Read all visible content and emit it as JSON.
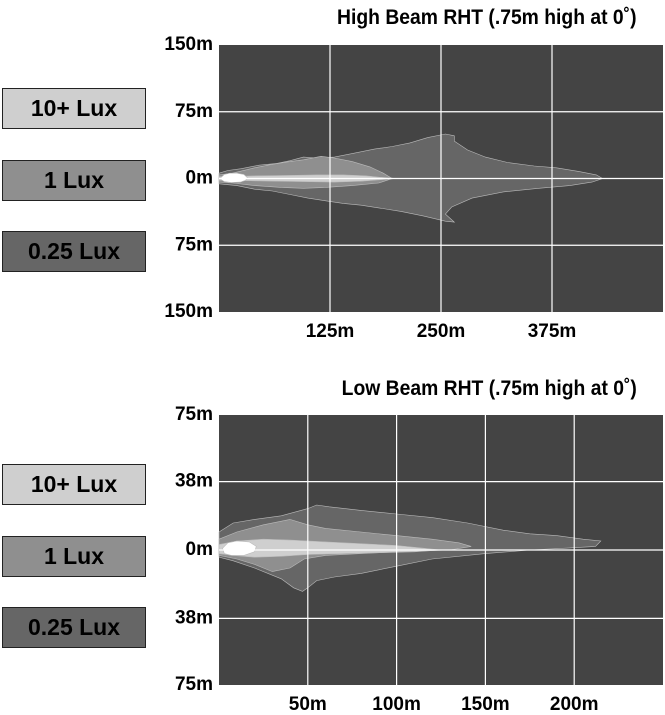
{
  "colors": {
    "plot_background": "#444444",
    "lux_025": "#666666",
    "lux_1": "#8f8f8f",
    "lux_10": "#cfcfcf",
    "grid": "#ffffff",
    "text": "#000000"
  },
  "chart_data": [
    {
      "type": "area",
      "title": "High Beam RHT (.75m high at 0˚)",
      "xlabel": "",
      "ylabel": "",
      "x_tick_labels": [
        "125m",
        "250m",
        "375m"
      ],
      "x_ticks": [
        125,
        250,
        375
      ],
      "xlim": [
        0,
        500
      ],
      "y_tick_labels": [
        "150m",
        "75m",
        "0m",
        "75m",
        "150m"
      ],
      "y_ticks": [
        150,
        75,
        0,
        -75,
        -150
      ],
      "ylim": [
        -150,
        150
      ],
      "grid": true,
      "legend": {
        "placement": "left",
        "entries": [
          "10+ Lux",
          "1 Lux",
          "0.25 Lux"
        ]
      },
      "series": [
        {
          "name": "0.25 Lux",
          "color": "#666666",
          "points": [
            [
              0,
              6
            ],
            [
              10,
              9
            ],
            [
              25,
              11
            ],
            [
              45,
              15
            ],
            [
              65,
              17
            ],
            [
              80,
              20
            ],
            [
              95,
              24
            ],
            [
              110,
              23
            ],
            [
              130,
              24
            ],
            [
              150,
              28
            ],
            [
              175,
              33
            ],
            [
              195,
              36
            ],
            [
              215,
              40
            ],
            [
              235,
              46
            ],
            [
              255,
              50
            ],
            [
              265,
              48
            ],
            [
              265,
              42
            ],
            [
              280,
              32
            ],
            [
              300,
              24
            ],
            [
              325,
              18
            ],
            [
              355,
              14
            ],
            [
              380,
              12
            ],
            [
              405,
              8
            ],
            [
              425,
              4
            ],
            [
              432,
              0
            ],
            [
              420,
              -4
            ],
            [
              395,
              -8
            ],
            [
              360,
              -11
            ],
            [
              320,
              -15
            ],
            [
              285,
              -22
            ],
            [
              262,
              -32
            ],
            [
              255,
              -40
            ],
            [
              265,
              -49
            ],
            [
              255,
              -48
            ],
            [
              230,
              -42
            ],
            [
              205,
              -37
            ],
            [
              180,
              -33
            ],
            [
              160,
              -30
            ],
            [
              140,
              -28
            ],
            [
              120,
              -25
            ],
            [
              100,
              -22
            ],
            [
              80,
              -18
            ],
            [
              60,
              -14
            ],
            [
              40,
              -12
            ],
            [
              20,
              -8
            ],
            [
              0,
              -6
            ]
          ]
        },
        {
          "name": "1 Lux",
          "color": "#8f8f8f",
          "points": [
            [
              0,
              4
            ],
            [
              15,
              6
            ],
            [
              40,
              12
            ],
            [
              60,
              16
            ],
            [
              80,
              19
            ],
            [
              95,
              21
            ],
            [
              115,
              25
            ],
            [
              130,
              23
            ],
            [
              150,
              19
            ],
            [
              170,
              13
            ],
            [
              185,
              6
            ],
            [
              195,
              0
            ],
            [
              180,
              -5
            ],
            [
              150,
              -8
            ],
            [
              120,
              -10
            ],
            [
              95,
              -11
            ],
            [
              70,
              -10
            ],
            [
              40,
              -8
            ],
            [
              15,
              -5
            ],
            [
              0,
              -4
            ]
          ]
        },
        {
          "name": "10+ Lux",
          "color": "#cfcfcf",
          "points": [
            [
              0,
              2
            ],
            [
              20,
              2.5
            ],
            [
              45,
              3
            ],
            [
              80,
              3.5
            ],
            [
              110,
              4
            ],
            [
              140,
              4
            ],
            [
              165,
              3
            ],
            [
              180,
              1.5
            ],
            [
              200,
              0
            ],
            [
              180,
              -1.5
            ],
            [
              160,
              -3
            ],
            [
              130,
              -4
            ],
            [
              95,
              -3.5
            ],
            [
              65,
              -3
            ],
            [
              35,
              -2.5
            ],
            [
              10,
              -2
            ],
            [
              0,
              -2
            ]
          ]
        },
        {
          "name": "hotspot",
          "color": "#ffffff",
          "points": [
            [
              2,
              1
            ],
            [
              6,
              4.5
            ],
            [
              12,
              6
            ],
            [
              20,
              6
            ],
            [
              28,
              4.5
            ],
            [
              32,
              1
            ],
            [
              30,
              -2
            ],
            [
              24,
              -4
            ],
            [
              14,
              -4.5
            ],
            [
              6,
              -3.5
            ],
            [
              2,
              -1
            ]
          ]
        }
      ]
    },
    {
      "type": "area",
      "title": "Low Beam RHT (.75m high at 0˚)",
      "xlabel": "",
      "ylabel": "",
      "x_tick_labels": [
        "50m",
        "100m",
        "150m",
        "200m"
      ],
      "x_ticks": [
        50,
        100,
        150,
        200
      ],
      "xlim": [
        0,
        250
      ],
      "y_tick_labels": [
        "75m",
        "38m",
        "0m",
        "38m",
        "75m"
      ],
      "y_ticks": [
        75,
        38,
        0,
        -38,
        -75
      ],
      "ylim": [
        -75,
        75
      ],
      "grid": true,
      "legend": {
        "placement": "left",
        "entries": [
          "10+ Lux",
          "1 Lux",
          "0.25 Lux"
        ]
      },
      "series": [
        {
          "name": "0.25 Lux",
          "color": "#666666",
          "points": [
            [
              0,
              10
            ],
            [
              8,
              15
            ],
            [
              20,
              17
            ],
            [
              35,
              19
            ],
            [
              50,
              23
            ],
            [
              55,
              25
            ],
            [
              62,
              24
            ],
            [
              80,
              22
            ],
            [
              100,
              20
            ],
            [
              120,
              18
            ],
            [
              140,
              15
            ],
            [
              160,
              11
            ],
            [
              175,
              9
            ],
            [
              190,
              8
            ],
            [
              205,
              6
            ],
            [
              215,
              5
            ],
            [
              212,
              2
            ],
            [
              195,
              1
            ],
            [
              175,
              0
            ],
            [
              150,
              -2
            ],
            [
              120,
              -5
            ],
            [
              100,
              -9
            ],
            [
              80,
              -13
            ],
            [
              65,
              -15
            ],
            [
              55,
              -17
            ],
            [
              50,
              -21
            ],
            [
              47,
              -23
            ],
            [
              42,
              -21
            ],
            [
              35,
              -16
            ],
            [
              20,
              -10
            ],
            [
              8,
              -6
            ],
            [
              0,
              -4
            ]
          ]
        },
        {
          "name": "1 Lux",
          "color": "#8f8f8f",
          "points": [
            [
              0,
              6
            ],
            [
              10,
              10
            ],
            [
              25,
              14
            ],
            [
              40,
              17
            ],
            [
              50,
              14
            ],
            [
              60,
              12
            ],
            [
              80,
              10
            ],
            [
              100,
              8
            ],
            [
              120,
              6
            ],
            [
              135,
              4
            ],
            [
              142,
              2
            ],
            [
              130,
              0
            ],
            [
              100,
              -1
            ],
            [
              80,
              -2
            ],
            [
              60,
              -3
            ],
            [
              48,
              -5
            ],
            [
              40,
              -10
            ],
            [
              30,
              -12
            ],
            [
              20,
              -8
            ],
            [
              10,
              -5
            ],
            [
              0,
              -3
            ]
          ]
        },
        {
          "name": "10+ Lux",
          "color": "#cfcfcf",
          "points": [
            [
              0,
              3
            ],
            [
              10,
              5
            ],
            [
              25,
              6
            ],
            [
              40,
              5.5
            ],
            [
              60,
              4.5
            ],
            [
              80,
              3.5
            ],
            [
              100,
              2.5
            ],
            [
              115,
              1
            ],
            [
              125,
              0
            ],
            [
              110,
              -1
            ],
            [
              90,
              -1.5
            ],
            [
              70,
              -2
            ],
            [
              50,
              -2.5
            ],
            [
              35,
              -3.5
            ],
            [
              20,
              -4
            ],
            [
              8,
              -3
            ],
            [
              0,
              -2
            ]
          ]
        },
        {
          "name": "hotspot",
          "color": "#ffffff",
          "points": [
            [
              2,
              1
            ],
            [
              5,
              4
            ],
            [
              10,
              5
            ],
            [
              17,
              4.5
            ],
            [
              21,
              2
            ],
            [
              20,
              -1
            ],
            [
              14,
              -3
            ],
            [
              7,
              -3
            ],
            [
              3,
              -2
            ]
          ]
        }
      ]
    }
  ]
}
